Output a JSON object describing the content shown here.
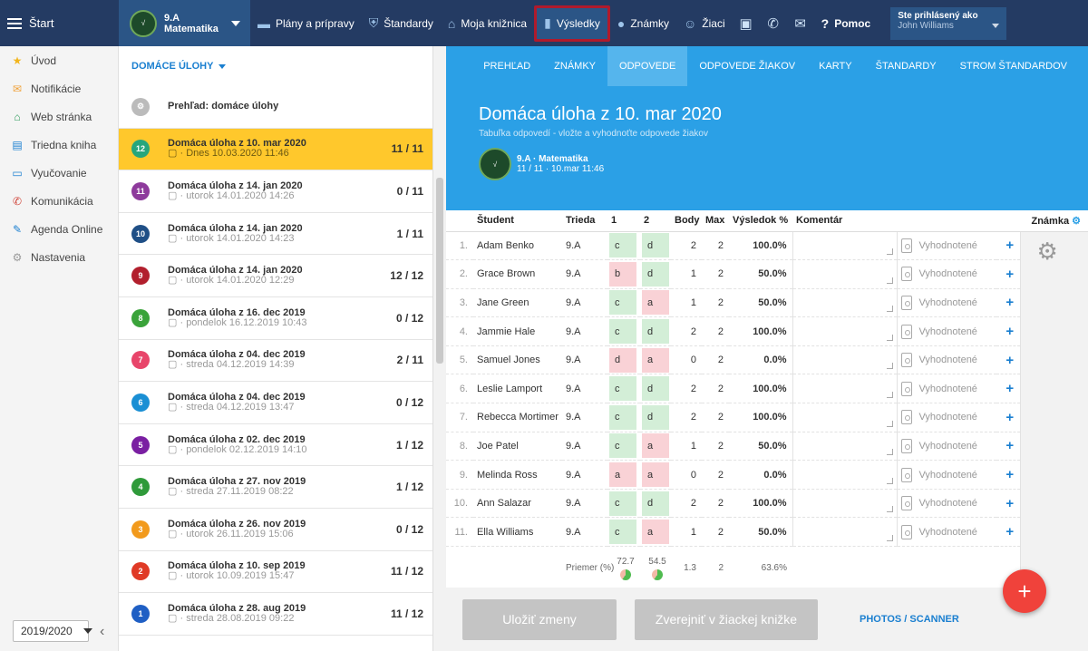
{
  "topbar": {
    "start_label": "Štart",
    "class_line1": "9.A",
    "class_line2": "Matematika",
    "nav": [
      {
        "label": "Plány a prípravy",
        "icon": "folder-icon"
      },
      {
        "label": "Štandardy",
        "icon": "shield-icon"
      },
      {
        "label": "Moja knižnica",
        "icon": "library-icon"
      },
      {
        "label": "Výsledky",
        "icon": "bar-chart-icon"
      },
      {
        "label": "Známky",
        "icon": "grade-icon"
      },
      {
        "label": "Žiaci",
        "icon": "students-icon"
      }
    ],
    "help_label": "Pomoc",
    "login_line1": "Ste prihlásený ako",
    "login_line2": "John Williams"
  },
  "sidebar": {
    "items": [
      {
        "label": "Úvod",
        "icon": "star-icon",
        "color": "#f2b51c"
      },
      {
        "label": "Notifikácie",
        "icon": "envelope-icon",
        "color": "#f0a23a"
      },
      {
        "label": "Web stránka",
        "icon": "home-icon",
        "color": "#2c9a5a"
      },
      {
        "label": "Triedna kniha",
        "icon": "book-icon",
        "color": "#1a7fd0"
      },
      {
        "label": "Vyučovanie",
        "icon": "open-book-icon",
        "color": "#1a7fd0"
      },
      {
        "label": "Komunikácia",
        "icon": "chat-icon",
        "color": "#d0453a"
      },
      {
        "label": "Agenda Online",
        "icon": "pen-icon",
        "color": "#1a7fd0"
      },
      {
        "label": "Nastavenia",
        "icon": "gear-icon",
        "color": "#999999"
      }
    ],
    "year": "2019/2020"
  },
  "list": {
    "header": "DOMÁCE ÚLOHY",
    "overview": "Prehľad: domáce úlohy",
    "items": [
      {
        "badge": "12",
        "color": "#27a67c",
        "title": "Domáca úloha z 10. mar 2020",
        "date": "Dnes 10.03.2020 11:46",
        "score": "11 / 11",
        "selected": true
      },
      {
        "badge": "11",
        "color": "#8e3a9c",
        "title": "Domáca úloha z 14. jan 2020",
        "date": "utorok 14.01.2020 14:26",
        "score": "0 / 11"
      },
      {
        "badge": "10",
        "color": "#1f4f86",
        "title": "Domáca úloha z 14. jan 2020",
        "date": "utorok 14.01.2020 14:23",
        "score": "1 / 11"
      },
      {
        "badge": "9",
        "color": "#b21f2d",
        "title": "Domáca úloha z 14. jan 2020",
        "date": "utorok 14.01.2020 12:29",
        "score": "12 / 12"
      },
      {
        "badge": "8",
        "color": "#3aa33a",
        "title": "Domáca úloha z 16. dec 2019",
        "date": "pondelok 16.12.2019 10:43",
        "score": "0 / 12"
      },
      {
        "badge": "7",
        "color": "#e8456a",
        "title": "Domáca úloha z 04. dec 2019",
        "date": "streda 04.12.2019 14:39",
        "score": "2 / 11"
      },
      {
        "badge": "6",
        "color": "#1a8fd4",
        "title": "Domáca úloha z 04. dec 2019",
        "date": "streda 04.12.2019 13:47",
        "score": "0 / 12"
      },
      {
        "badge": "5",
        "color": "#7a1fa2",
        "title": "Domáca úloha z 02. dec 2019",
        "date": "pondelok 02.12.2019 14:10",
        "score": "1 / 12"
      },
      {
        "badge": "4",
        "color": "#2f9a3a",
        "title": "Domáca úloha z 27. nov 2019",
        "date": "streda 27.11.2019 08:22",
        "score": "1 / 12"
      },
      {
        "badge": "3",
        "color": "#f29a1c",
        "title": "Domáca úloha z 26. nov 2019",
        "date": "utorok 26.11.2019 15:06",
        "score": "0 / 12"
      },
      {
        "badge": "2",
        "color": "#e03a26",
        "title": "Domáca úloha z 10. sep 2019",
        "date": "utorok 10.09.2019 15:47",
        "score": "11 / 12"
      },
      {
        "badge": "1",
        "color": "#1f5fc4",
        "title": "Domáca úloha z 28. aug 2019",
        "date": "streda 28.08.2019 09:22",
        "score": "11 / 12"
      }
    ]
  },
  "tabs": [
    "PREHĽAD",
    "ZNÁMKY",
    "ODPOVEDE",
    "ODPOVEDE ŽIAKOV",
    "KARTY",
    "ŠTANDARDY",
    "STROM ŠTANDARDOV"
  ],
  "active_tab": 2,
  "hero": {
    "title": "Domáca úloha z 10. mar 2020",
    "subtitle": "Tabuľka odpovedí - vložte a vyhodnoťte odpovede žiakov",
    "class_name": "9.A · Matematika",
    "class_meta": "11 / 11 · 10.mar 11:46"
  },
  "table": {
    "headers": {
      "student": "Študent",
      "trieda": "Trieda",
      "q1": "1",
      "q2": "2",
      "body": "Body",
      "max": "Max",
      "vysledok": "Výsledok %",
      "komentar": "Komentár",
      "znamka": "Známka"
    },
    "rows": [
      {
        "n": "1.",
        "name": "Adam Benko",
        "cls": "9.A",
        "a1": "c",
        "ok1": true,
        "a2": "d",
        "ok2": true,
        "body": "2",
        "max": "2",
        "pct": "100.0%",
        "status": "Vyhodnotené"
      },
      {
        "n": "2.",
        "name": "Grace Brown",
        "cls": "9.A",
        "a1": "b",
        "ok1": false,
        "a2": "d",
        "ok2": true,
        "body": "1",
        "max": "2",
        "pct": "50.0%",
        "status": "Vyhodnotené"
      },
      {
        "n": "3.",
        "name": "Jane Green",
        "cls": "9.A",
        "a1": "c",
        "ok1": true,
        "a2": "a",
        "ok2": false,
        "body": "1",
        "max": "2",
        "pct": "50.0%",
        "status": "Vyhodnotené"
      },
      {
        "n": "4.",
        "name": "Jammie Hale",
        "cls": "9.A",
        "a1": "c",
        "ok1": true,
        "a2": "d",
        "ok2": true,
        "body": "2",
        "max": "2",
        "pct": "100.0%",
        "status": "Vyhodnotené"
      },
      {
        "n": "5.",
        "name": "Samuel Jones",
        "cls": "9.A",
        "a1": "d",
        "ok1": false,
        "a2": "a",
        "ok2": false,
        "body": "0",
        "max": "2",
        "pct": "0.0%",
        "status": "Vyhodnotené"
      },
      {
        "n": "6.",
        "name": "Leslie Lamport",
        "cls": "9.A",
        "a1": "c",
        "ok1": true,
        "a2": "d",
        "ok2": true,
        "body": "2",
        "max": "2",
        "pct": "100.0%",
        "status": "Vyhodnotené"
      },
      {
        "n": "7.",
        "name": "Rebecca Mortimer",
        "cls": "9.A",
        "a1": "c",
        "ok1": true,
        "a2": "d",
        "ok2": true,
        "body": "2",
        "max": "2",
        "pct": "100.0%",
        "status": "Vyhodnotené"
      },
      {
        "n": "8.",
        "name": "Joe Patel",
        "cls": "9.A",
        "a1": "c",
        "ok1": true,
        "a2": "a",
        "ok2": false,
        "body": "1",
        "max": "2",
        "pct": "50.0%",
        "status": "Vyhodnotené"
      },
      {
        "n": "9.",
        "name": "Melinda Ross",
        "cls": "9.A",
        "a1": "a",
        "ok1": false,
        "a2": "a",
        "ok2": false,
        "body": "0",
        "max": "2",
        "pct": "0.0%",
        "status": "Vyhodnotené"
      },
      {
        "n": "10.",
        "name": "Ann Salazar",
        "cls": "9.A",
        "a1": "c",
        "ok1": true,
        "a2": "d",
        "ok2": true,
        "body": "2",
        "max": "2",
        "pct": "100.0%",
        "status": "Vyhodnotené"
      },
      {
        "n": "11.",
        "name": "Ella Williams",
        "cls": "9.A",
        "a1": "c",
        "ok1": true,
        "a2": "a",
        "ok2": false,
        "body": "1",
        "max": "2",
        "pct": "50.0%",
        "status": "Vyhodnotené"
      }
    ],
    "average": {
      "label": "Priemer (%)",
      "q1": "72.7",
      "q2": "54.5",
      "body": "1.3",
      "max": "2",
      "pct": "63.6%"
    }
  },
  "bottom": {
    "save": "Uložiť zmeny",
    "publish": "Zverejniť v žiackej knižke",
    "photos": "PHOTOS / SCANNER"
  },
  "colors": {
    "topbar": "#243b63",
    "accent": "#2ba0e6",
    "selected": "#ffc82c",
    "fab": "#f0423b"
  }
}
